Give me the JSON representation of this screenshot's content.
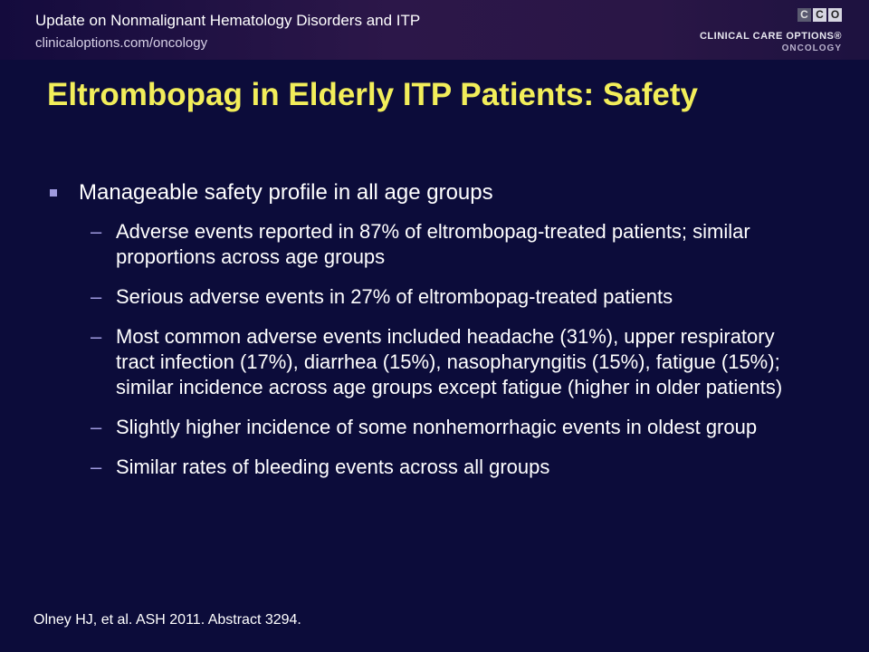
{
  "header": {
    "title": "Update on Nonmalignant Hematology Disorders and ITP",
    "url": "clinicaloptions.com/oncology",
    "logo": {
      "letters": [
        "C",
        "C",
        "O"
      ],
      "name": "CLINICAL CARE OPTIONS",
      "registered": "®",
      "sub": "ONCOLOGY"
    }
  },
  "slide": {
    "title": "Eltrombopag in Elderly ITP Patients: Safety",
    "main_bullet": "Manageable safety profile in all age groups",
    "sub_bullets": [
      "Adverse events reported in 87% of eltrombopag-treated patients; similar proportions across age groups",
      "Serious adverse events in 27% of eltrombopag-treated patients",
      "Most common adverse events included headache (31%), upper respiratory tract infection (17%), diarrhea (15%), nasopharyngitis (15%), fatigue (15%); similar incidence across age groups except fatigue (higher in older patients)",
      "Slightly higher incidence of some nonhemorrhagic events in oldest group",
      "Similar rates of bleeding events across all groups"
    ],
    "dash": "–",
    "citation": "Olney HJ, et al. ASH 2011. Abstract 3294."
  },
  "colors": {
    "background": "#0c0c3a",
    "title": "#f2ee5a",
    "bullet_marker": "#9f9adf"
  }
}
